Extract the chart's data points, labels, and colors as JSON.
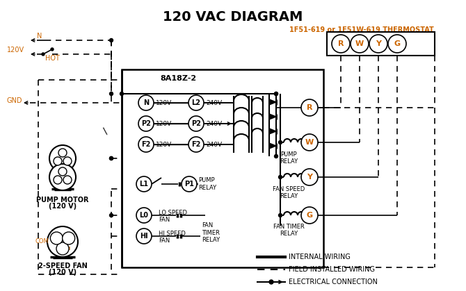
{
  "title": "120 VAC DIAGRAM",
  "thermostat_label": "1F51-619 or 1F51W-619 THERMOSTAT",
  "control_box_label": "8A18Z-2",
  "thermostat_terminals": [
    "R",
    "W",
    "Y",
    "G"
  ],
  "input_terminals_left": [
    "N",
    "P2",
    "F2"
  ],
  "input_terminals_right": [
    "L2",
    "P2",
    "F2"
  ],
  "input_voltages_left": [
    "120V",
    "120V",
    "120V"
  ],
  "input_voltages_right": [
    "240V",
    "240V",
    "240V"
  ],
  "legend_internal": "INTERNAL WIRING",
  "legend_field": "FIELD INSTALLED WIRING",
  "legend_electrical": "ELECTRICAL CONNECTION",
  "bg_color": "#ffffff",
  "orange_color": "#cc6600"
}
